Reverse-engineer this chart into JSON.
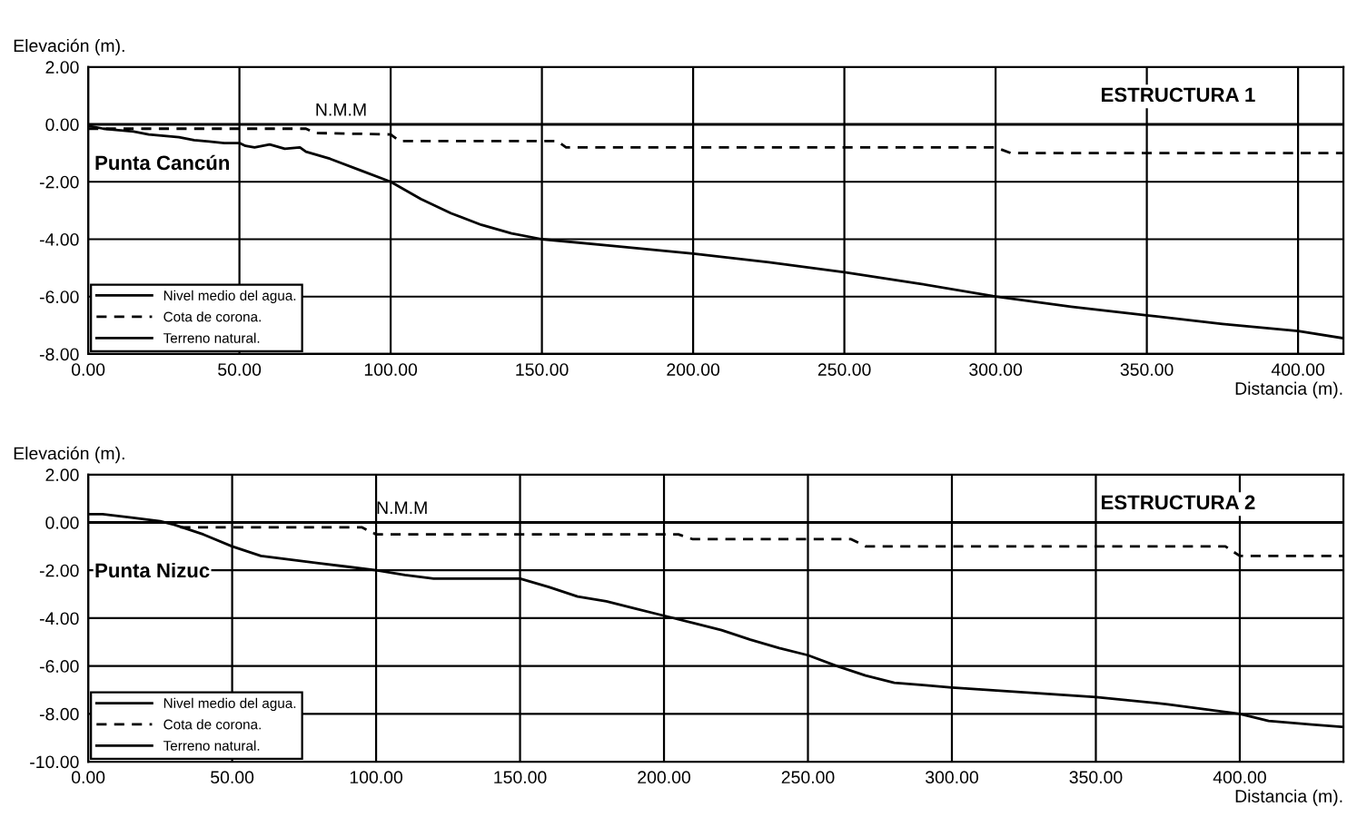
{
  "chart_data": [
    {
      "type": "line",
      "title": "ESTRUCTURA 1",
      "xlabel": "Distancia (m).",
      "ylabel": "Elevación (m).",
      "xlim": [
        0,
        415
      ],
      "ylim": [
        -8,
        2
      ],
      "xticks": [
        {
          "value": 0,
          "label": "0.00"
        },
        {
          "value": 50,
          "label": "50.00"
        },
        {
          "value": 100,
          "label": "100.00"
        },
        {
          "value": 150,
          "label": "150.00"
        },
        {
          "value": 200,
          "label": "200.00"
        },
        {
          "value": 250,
          "label": "250.00"
        },
        {
          "value": 300,
          "label": "300.00"
        },
        {
          "value": 350,
          "label": "350.00"
        },
        {
          "value": 400,
          "label": "400.00"
        }
      ],
      "yticks": [
        {
          "value": -8,
          "label": "-8.00"
        },
        {
          "value": -6,
          "label": "-6.00"
        },
        {
          "value": -4,
          "label": "-4.00"
        },
        {
          "value": -2,
          "label": "-2.00"
        },
        {
          "value": 0,
          "label": "0.00"
        },
        {
          "value": 2,
          "label": "2.00"
        }
      ],
      "grid": true,
      "legend": "bottom left",
      "annotations": [
        {
          "text": "N.M.M",
          "x": 75,
          "y": 0
        },
        "Punta Cancún"
      ],
      "series": [
        {
          "name": "Nivel medio del agua.",
          "color": "#000000",
          "line_style": "solid",
          "x": [
            0,
            415
          ],
          "values": [
            0,
            0
          ]
        },
        {
          "name": "Cota de corona.",
          "color": "#000000",
          "line_style": "dashed",
          "x": [
            0,
            72,
            75,
            100,
            103,
            155,
            158,
            300,
            305,
            415
          ],
          "values": [
            -0.15,
            -0.15,
            -0.3,
            -0.35,
            -0.58,
            -0.58,
            -0.8,
            -0.8,
            -1.0,
            -1.0
          ]
        },
        {
          "name": "Terreno natural.",
          "color": "#000000",
          "line_style": "solid",
          "x": [
            0,
            5,
            10,
            15,
            20,
            25,
            30,
            35,
            40,
            45,
            50,
            52,
            55,
            60,
            65,
            70,
            72,
            80,
            90,
            100,
            110,
            120,
            130,
            140,
            150,
            175,
            200,
            225,
            250,
            275,
            300,
            325,
            350,
            375,
            400,
            415
          ],
          "values": [
            -0.05,
            -0.15,
            -0.2,
            -0.25,
            -0.35,
            -0.4,
            -0.45,
            -0.55,
            -0.6,
            -0.65,
            -0.65,
            -0.75,
            -0.8,
            -0.7,
            -0.85,
            -0.8,
            -0.95,
            -1.2,
            -1.6,
            -2.0,
            -2.6,
            -3.1,
            -3.5,
            -3.8,
            -4.0,
            -4.25,
            -4.5,
            -4.8,
            -5.15,
            -5.55,
            -6.0,
            -6.35,
            -6.65,
            -6.95,
            -7.2,
            -7.45
          ]
        }
      ]
    },
    {
      "type": "line",
      "title": "ESTRUCTURA 2",
      "xlabel": "Distancia (m).",
      "ylabel": "Elevación (m).",
      "xlim": [
        0,
        436
      ],
      "ylim": [
        -10,
        2
      ],
      "xticks": [
        {
          "value": 0,
          "label": "0.00"
        },
        {
          "value": 50,
          "label": "50.00"
        },
        {
          "value": 100,
          "label": "100.00"
        },
        {
          "value": 150,
          "label": "150.00"
        },
        {
          "value": 200,
          "label": "200.00"
        },
        {
          "value": 250,
          "label": "250.00"
        },
        {
          "value": 300,
          "label": "300.00"
        },
        {
          "value": 350,
          "label": "350.00"
        },
        {
          "value": 400,
          "label": "400.00"
        }
      ],
      "yticks": [
        {
          "value": -10,
          "label": "-10.00"
        },
        {
          "value": -8,
          "label": "-8.00"
        },
        {
          "value": -6,
          "label": "-6.00"
        },
        {
          "value": -4,
          "label": "-4.00"
        },
        {
          "value": -2,
          "label": "-2.00"
        },
        {
          "value": 0,
          "label": "0.00"
        },
        {
          "value": 2,
          "label": "2.00"
        }
      ],
      "grid": true,
      "legend": "bottom left",
      "annotations": [
        {
          "text": "N.M.M",
          "x": 100,
          "y": 0
        },
        "Punta Nizuc"
      ],
      "series": [
        {
          "name": "Nivel medio del agua.",
          "color": "#000000",
          "line_style": "solid",
          "x": [
            0,
            436
          ],
          "values": [
            0,
            0
          ]
        },
        {
          "name": "Cota de corona.",
          "color": "#000000",
          "line_style": "dashed",
          "x": [
            32,
            95,
            100,
            205,
            210,
            265,
            270,
            395,
            400,
            436
          ],
          "values": [
            -0.2,
            -0.2,
            -0.5,
            -0.5,
            -0.7,
            -0.7,
            -1.0,
            -1.0,
            -1.4,
            -1.4
          ]
        },
        {
          "name": "Terreno natural.",
          "color": "#000000",
          "line_style": "solid",
          "x": [
            0,
            5,
            15,
            25,
            30,
            40,
            50,
            60,
            70,
            80,
            90,
            100,
            110,
            120,
            150,
            160,
            170,
            180,
            190,
            200,
            210,
            220,
            230,
            240,
            250,
            260,
            270,
            280,
            290,
            300,
            325,
            350,
            375,
            400,
            410,
            425,
            436
          ],
          "values": [
            0.35,
            0.35,
            0.2,
            0.05,
            -0.1,
            -0.5,
            -1.0,
            -1.4,
            -1.55,
            -1.7,
            -1.85,
            -2.0,
            -2.2,
            -2.35,
            -2.35,
            -2.7,
            -3.1,
            -3.3,
            -3.6,
            -3.9,
            -4.2,
            -4.5,
            -4.9,
            -5.25,
            -5.55,
            -6.0,
            -6.4,
            -6.7,
            -6.8,
            -6.9,
            -7.1,
            -7.3,
            -7.6,
            -8.0,
            -8.3,
            -8.45,
            -8.55
          ]
        }
      ]
    }
  ]
}
